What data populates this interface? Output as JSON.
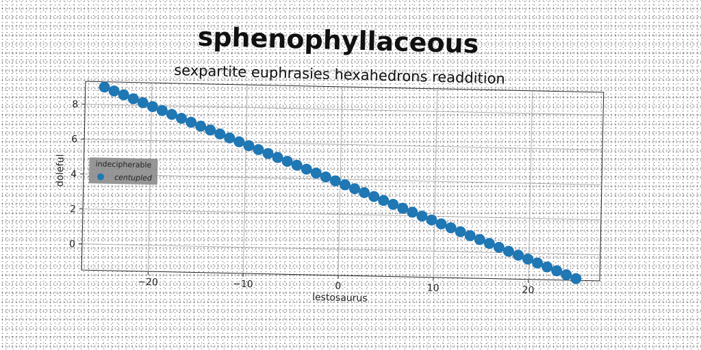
{
  "chart_data": {
    "type": "scatter",
    "title": "sphenophyllaceous",
    "subtitle": "sexpartite euphrasies hexahedrons readdition",
    "xlabel": "lestosaurus",
    "ylabel": "doleful",
    "xlim": [
      -27,
      27.5
    ],
    "ylim": [
      -1.5,
      9.3
    ],
    "xticks": [
      -20,
      -10,
      0,
      10,
      20
    ],
    "yticks": [
      0,
      2,
      4,
      6,
      8
    ],
    "grid": true,
    "legend": {
      "title": "indecipherable",
      "placement": "center-left"
    },
    "series": [
      {
        "name": "centupled",
        "color": "#1f77b4",
        "x_start": -25,
        "x_end": 25,
        "count": 50,
        "y_start": 9.0,
        "y_end": -1.4
      }
    ]
  }
}
